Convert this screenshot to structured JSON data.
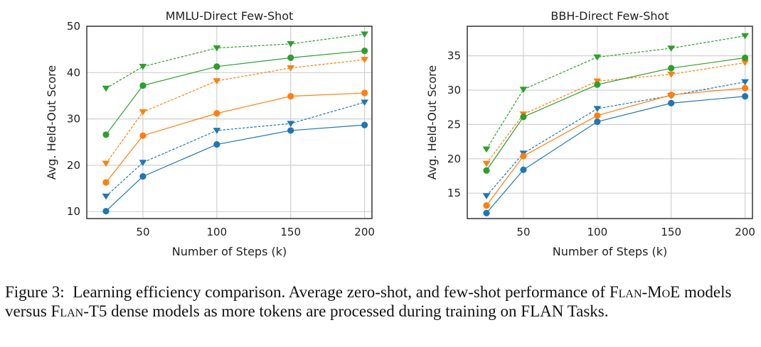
{
  "chart_data": [
    {
      "type": "line",
      "title": "MMLU-Direct Few-Shot",
      "xlabel": "Number of Steps (k)",
      "ylabel": "Avg. Held-Out Score",
      "x": [
        25,
        50,
        100,
        150,
        200
      ],
      "xticks": [
        50,
        100,
        150,
        200
      ],
      "yticks": [
        10,
        20,
        30,
        40,
        50
      ],
      "xlim": [
        12,
        205
      ],
      "ylim": [
        8.5,
        50
      ],
      "grid": true,
      "series": [
        {
          "name": "blue-circle-solid",
          "color": "#1f77b4",
          "marker": "circle",
          "linestyle": "solid",
          "values": [
            10.1,
            17.6,
            24.5,
            27.5,
            28.7
          ]
        },
        {
          "name": "blue-triangle-dashed",
          "color": "#1f77b4",
          "marker": "triangle-down",
          "linestyle": "dashed",
          "values": [
            13.3,
            20.6,
            27.5,
            29.0,
            33.6
          ]
        },
        {
          "name": "orange-circle-solid",
          "color": "#ff7f0e",
          "marker": "circle",
          "linestyle": "solid",
          "values": [
            16.3,
            26.4,
            31.2,
            34.9,
            35.6
          ]
        },
        {
          "name": "orange-triangle-dashed",
          "color": "#ff7f0e",
          "marker": "triangle-down",
          "linestyle": "dashed",
          "values": [
            20.4,
            31.5,
            38.2,
            41.0,
            42.8
          ]
        },
        {
          "name": "green-circle-solid",
          "color": "#2ca02c",
          "marker": "circle",
          "linestyle": "solid",
          "values": [
            26.6,
            37.2,
            41.3,
            43.2,
            44.7
          ]
        },
        {
          "name": "green-triangle-dashed",
          "color": "#2ca02c",
          "marker": "triangle-down",
          "linestyle": "dashed",
          "values": [
            36.6,
            41.3,
            45.3,
            46.2,
            48.3
          ]
        }
      ]
    },
    {
      "type": "line",
      "title": "BBH-Direct Few-Shot",
      "xlabel": "Number of Steps (k)",
      "ylabel": "Avg. Held-Out Score",
      "x": [
        25,
        50,
        100,
        150,
        200
      ],
      "xticks": [
        50,
        100,
        150,
        200
      ],
      "yticks": [
        15,
        20,
        25,
        30,
        35
      ],
      "xlim": [
        12,
        205
      ],
      "ylim": [
        11.3,
        39.3
      ],
      "grid": true,
      "series": [
        {
          "name": "blue-circle-solid",
          "color": "#1f77b4",
          "marker": "circle",
          "linestyle": "solid",
          "values": [
            12.1,
            18.4,
            25.4,
            28.1,
            29.1
          ]
        },
        {
          "name": "blue-triangle-dashed",
          "color": "#1f77b4",
          "marker": "triangle-down",
          "linestyle": "dashed",
          "values": [
            14.6,
            20.8,
            27.3,
            29.2,
            31.2
          ]
        },
        {
          "name": "orange-circle-solid",
          "color": "#ff7f0e",
          "marker": "circle",
          "linestyle": "solid",
          "values": [
            13.2,
            20.4,
            26.3,
            29.3,
            30.3
          ]
        },
        {
          "name": "orange-triangle-dashed",
          "color": "#ff7f0e",
          "marker": "triangle-down",
          "linestyle": "dashed",
          "values": [
            19.3,
            26.5,
            31.3,
            32.3,
            34.0
          ]
        },
        {
          "name": "green-circle-solid",
          "color": "#2ca02c",
          "marker": "circle",
          "linestyle": "solid",
          "values": [
            18.3,
            26.1,
            30.8,
            33.2,
            34.7
          ]
        },
        {
          "name": "green-triangle-dashed",
          "color": "#2ca02c",
          "marker": "triangle-down",
          "linestyle": "dashed",
          "values": [
            21.4,
            30.1,
            34.8,
            36.1,
            37.9
          ]
        }
      ]
    }
  ],
  "caption": {
    "label": "Figure 3:",
    "text_1": "Learning efficiency comparison. Average zero-shot, and few-shot performance of ",
    "flan_moe": "Flan-MoE",
    "text_2": " models versus ",
    "flan_t5": "Flan-T5",
    "text_3": " dense models as more tokens are processed during training on FLAN Tasks."
  }
}
